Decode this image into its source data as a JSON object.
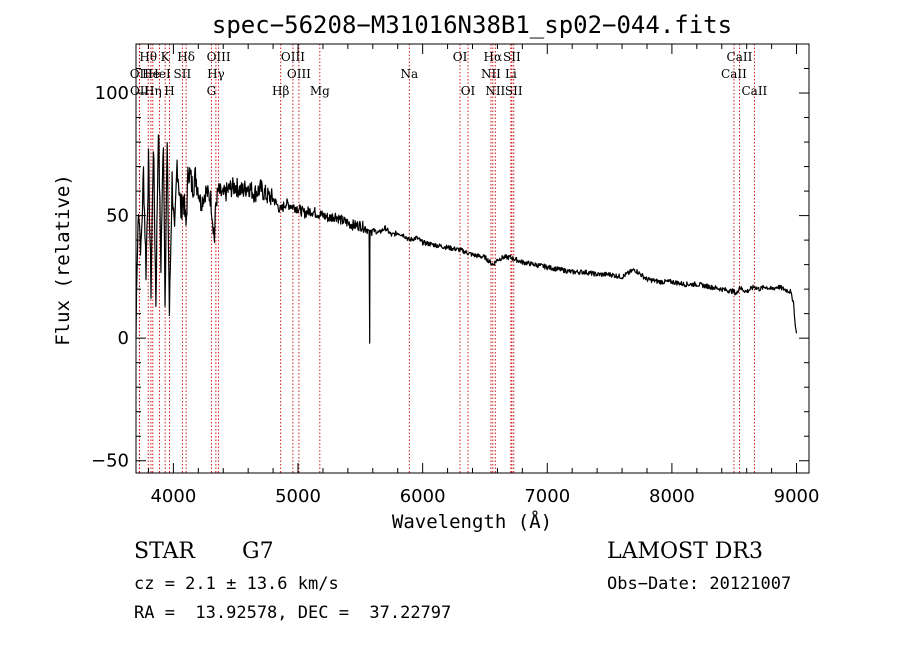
{
  "chart_data": {
    "type": "line",
    "title": "spec−56208−M31016N38B1_sp02−044.fits",
    "xlabel": "Wavelength (Å)",
    "ylabel": "Flux (relative)",
    "xlim": [
      3700,
      9100
    ],
    "ylim": [
      -55,
      120
    ],
    "xticks": [
      4000,
      5000,
      6000,
      7000,
      8000,
      9000
    ],
    "yticks": [
      -50,
      0,
      50,
      100
    ],
    "xtick_labels": [
      "4000",
      "5000",
      "6000",
      "7000",
      "8000",
      "9000"
    ],
    "ytick_labels": [
      "−50",
      "0",
      "50",
      "100"
    ],
    "spectrum": {
      "x": [
        3700,
        3705,
        3720,
        3740,
        3760,
        3780,
        3800,
        3820,
        3840,
        3860,
        3880,
        3900,
        3920,
        3933,
        3950,
        3968,
        3990,
        4010,
        4030,
        4060,
        4080,
        4101,
        4120,
        4150,
        4180,
        4220,
        4260,
        4300,
        4330,
        4340,
        4360,
        4400,
        4450,
        4500,
        4550,
        4600,
        4650,
        4700,
        4750,
        4800,
        4861,
        4900,
        4950,
        5000,
        5050,
        5100,
        5150,
        5200,
        5250,
        5300,
        5350,
        5400,
        5450,
        5500,
        5540,
        5570,
        5575,
        5577,
        5580,
        5600,
        5650,
        5700,
        5750,
        5800,
        5850,
        5893,
        5950,
        6000,
        6100,
        6200,
        6300,
        6400,
        6500,
        6563,
        6600,
        6650,
        6700,
        6800,
        6900,
        7000,
        7100,
        7200,
        7300,
        7400,
        7500,
        7600,
        7700,
        7800,
        7900,
        8000,
        8100,
        8200,
        8300,
        8400,
        8498,
        8520,
        8542,
        8560,
        8600,
        8662,
        8700,
        8750,
        8800,
        8850,
        8900,
        8950,
        8975,
        8990,
        9000
      ],
      "y": [
        0,
        20,
        55,
        35,
        68,
        28,
        72,
        20,
        80,
        15,
        88,
        30,
        82,
        18,
        78,
        10,
        65,
        40,
        72,
        52,
        58,
        45,
        70,
        62,
        66,
        55,
        60,
        57,
        40,
        55,
        60,
        58,
        61,
        62,
        60,
        62,
        59,
        61,
        58,
        57,
        52,
        55,
        54,
        53,
        51,
        52,
        51,
        50,
        49,
        50,
        48,
        47,
        46,
        46,
        45,
        44,
        -2,
        40,
        44,
        44,
        43,
        45,
        42,
        43,
        42,
        40,
        41,
        39,
        38,
        37,
        36,
        34,
        33,
        30,
        32,
        33,
        33,
        31,
        30,
        29,
        28,
        27,
        27,
        26,
        26,
        25,
        28,
        24,
        23,
        23,
        22,
        22,
        21,
        20,
        19,
        18,
        21,
        20,
        19,
        21,
        20,
        21,
        20,
        21,
        20,
        19,
        15,
        5,
        2
      ]
    },
    "lines": [
      {
        "name": "Hθ",
        "wavelength": 3798,
        "row": 0
      },
      {
        "name": "OII",
        "wavelength": 3727,
        "row": 1
      },
      {
        "name": "OII",
        "wavelength": 3729,
        "row": 2
      },
      {
        "name": "He",
        "wavelength": 3820,
        "row": 1
      },
      {
        "name": "Hη",
        "wavelength": 3835,
        "row": 2
      },
      {
        "name": "K",
        "wavelength": 3934,
        "row": 0
      },
      {
        "name": "HeI",
        "wavelength": 3889,
        "row": 1
      },
      {
        "name": "H",
        "wavelength": 3969,
        "row": 2
      },
      {
        "name": "SII",
        "wavelength": 4072,
        "row": 1
      },
      {
        "name": "Hδ",
        "wavelength": 4102,
        "row": 0
      },
      {
        "name": "OIII",
        "wavelength": 4363,
        "row": 0
      },
      {
        "name": "Hγ",
        "wavelength": 4341,
        "row": 1
      },
      {
        "name": "G",
        "wavelength": 4305,
        "row": 2
      },
      {
        "name": "Hβ",
        "wavelength": 4861,
        "row": 2
      },
      {
        "name": "OIII",
        "wavelength": 4959,
        "row": 0
      },
      {
        "name": "OIII",
        "wavelength": 5007,
        "row": 1
      },
      {
        "name": "Mg",
        "wavelength": 5175,
        "row": 2
      },
      {
        "name": "Na",
        "wavelength": 5893,
        "row": 1
      },
      {
        "name": "OI",
        "wavelength": 6300,
        "row": 0
      },
      {
        "name": "OI",
        "wavelength": 6364,
        "row": 2
      },
      {
        "name": "Hα",
        "wavelength": 6563,
        "row": 0
      },
      {
        "name": "NII",
        "wavelength": 6548,
        "row": 1
      },
      {
        "name": "NII",
        "wavelength": 6583,
        "row": 2
      },
      {
        "name": "SII",
        "wavelength": 6716,
        "row": 0
      },
      {
        "name": "Li",
        "wavelength": 6708,
        "row": 1
      },
      {
        "name": "SII",
        "wavelength": 6731,
        "row": 2
      },
      {
        "name": "CaII",
        "wavelength": 8542,
        "row": 0
      },
      {
        "name": "CaII",
        "wavelength": 8498,
        "row": 1
      },
      {
        "name": "CaII",
        "wavelength": 8662,
        "row": 2
      }
    ]
  },
  "info": {
    "class_label": "STAR",
    "subclass": "G7",
    "survey": "LAMOST DR3",
    "cz": "cz = 2.1 ± 13.6 km/s",
    "obs_date": "Obs−Date: 20121007",
    "coords": "RA =  13.92578, DEC =  37.22797"
  },
  "colors": {
    "spectrum": "#000000",
    "line_marker": "#cc0000",
    "axes": "#000000"
  }
}
